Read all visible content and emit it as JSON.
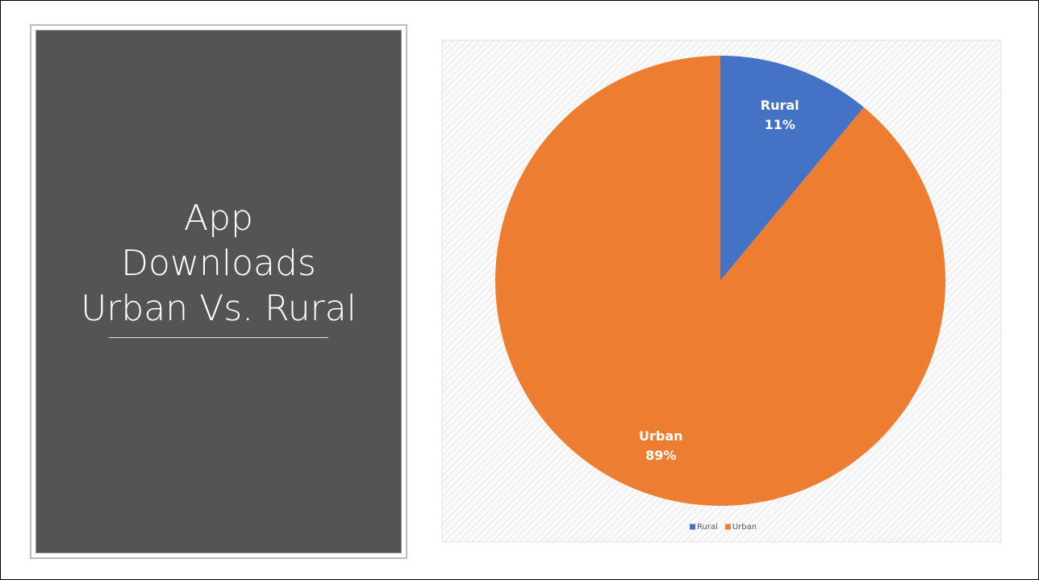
{
  "chart_data": {
    "type": "pie",
    "title_lines": [
      "App",
      "Downloads",
      "Urban Vs. Rural"
    ],
    "categories": [
      "Rural",
      "Urban"
    ],
    "values": [
      11,
      89
    ],
    "value_labels": [
      "11%",
      "89%"
    ],
    "colors": [
      "#4472c4",
      "#ed7d31"
    ],
    "legend": "bottom"
  }
}
